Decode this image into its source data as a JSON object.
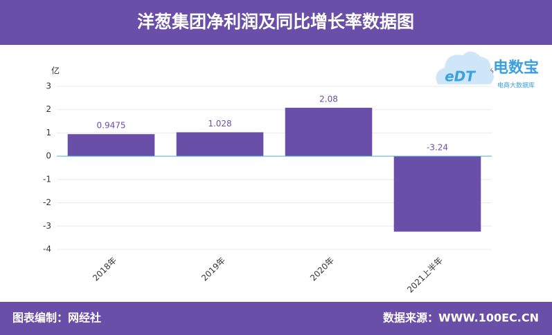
{
  "chart_data": {
    "type": "bar",
    "title": "洋葱集团净利润及同比增长率数据图",
    "y_unit": "亿",
    "y2_unit": "%",
    "categories": [
      "2018年",
      "2019年",
      "2020年",
      "2021上半年"
    ],
    "values": [
      0.9475,
      1.028,
      2.08,
      -3.24
    ],
    "color": "#6a4fa8",
    "ylim": [
      -4,
      3
    ],
    "yticks": [
      -4,
      -3,
      -2,
      -1,
      0,
      1,
      2,
      3
    ],
    "grid": true
  },
  "logo": {
    "mark": "eDT",
    "name": "电数宝",
    "subtitle": "电商大数据库"
  },
  "footer": {
    "left": "图表编制：网经社",
    "right": "数据来源：WWW.100EC.CN"
  }
}
